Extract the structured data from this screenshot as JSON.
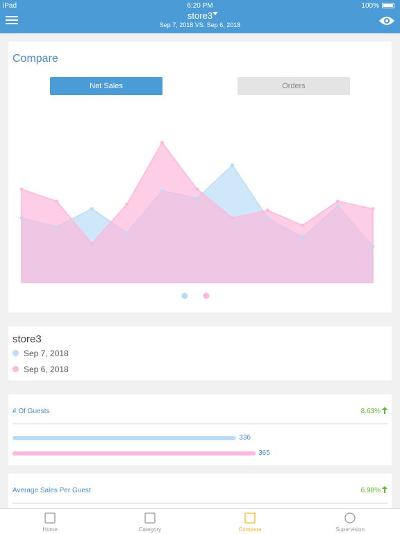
{
  "status_bar": {
    "device": "iPad",
    "time": "6:20 PM",
    "battery": "100%"
  },
  "header": {
    "title": "store3",
    "subtitle": "Sep 7, 2018 VS. Sep 6, 2018"
  },
  "compare_card": {
    "title": "Compare",
    "buttons": [
      "Net Sales",
      "Orders"
    ]
  },
  "chart_data": {
    "type": "area",
    "categories": [
      null,
      null,
      null,
      null,
      null,
      null,
      null,
      null,
      null,
      null,
      null
    ],
    "ylim": [
      0,
      100
    ],
    "series": [
      {
        "name": "Sep 7, 2018",
        "color": "#b9ddf7",
        "values": [
          43,
          37,
          49,
          33,
          61,
          56,
          78,
          43,
          30,
          51,
          24
        ]
      },
      {
        "name": "Sep 6, 2018",
        "color": "#fcb9dc",
        "values": [
          62,
          54,
          26,
          52,
          93,
          62,
          43,
          48,
          38,
          54,
          49
        ]
      }
    ]
  },
  "legend_card": {
    "title": "store3"
  },
  "metrics": [
    {
      "title": "# Of Guests",
      "change": "8.63%",
      "xlim": [
        0,
        563
      ],
      "values": [
        336,
        365
      ]
    },
    {
      "title": "Average Sales Per Guest",
      "change": "6.98%"
    }
  ],
  "tab_bar": [
    "Home",
    "Category",
    "Compare",
    "Supervision"
  ]
}
